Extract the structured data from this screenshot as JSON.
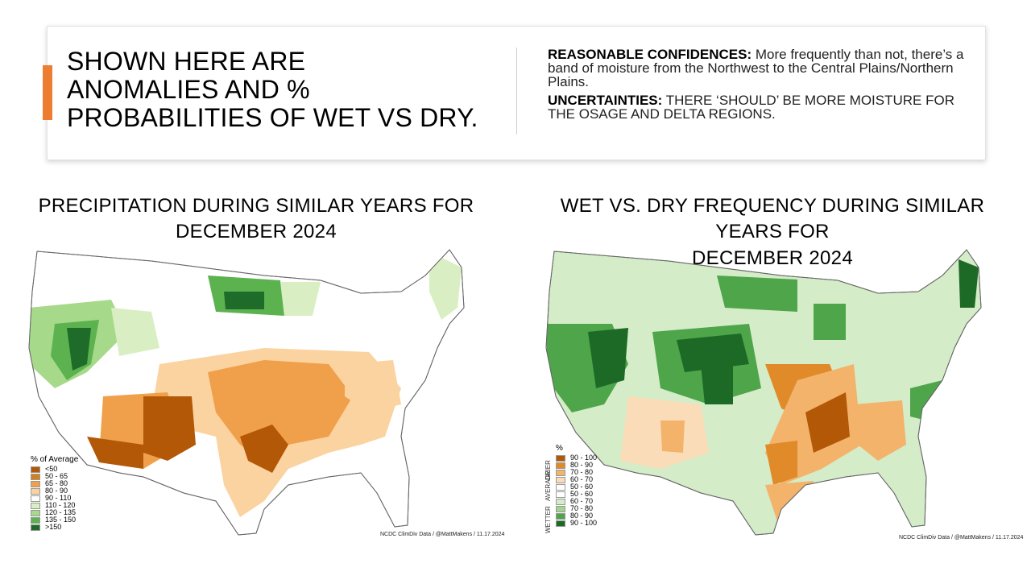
{
  "header": {
    "headline_lines": [
      "SHOWN HERE ARE",
      "ANOMALIES AND %",
      "PROBABILITIES OF WET VS DRY."
    ],
    "confidences_label": "REASONABLE CONFIDENCES:",
    "confidences_text": "More frequently than not, there’s a band of moisture from the Northwest to the Central Plains/Northern Plains.",
    "uncertainties_label": "UNCERTAINTIES:",
    "uncertainties_text": "THERE ‘SHOULD’ BE MORE MOISTURE FOR THE OSAGE AND DELTA REGIONS."
  },
  "left_map": {
    "title_lines": [
      "PRECIPITATION DURING SIMILAR YEARS FOR",
      "DECEMBER 2024"
    ],
    "legend_title": "% of Average",
    "legend": [
      {
        "label": "<50",
        "color": "#b35806"
      },
      {
        "label": "50 - 65",
        "color": "#d6801c"
      },
      {
        "label": "65 - 80",
        "color": "#f0a04a"
      },
      {
        "label": "80 - 90",
        "color": "#fbd3a0"
      },
      {
        "label": "90 - 110",
        "color": "#ffffff"
      },
      {
        "label": "110 - 120",
        "color": "#d9efc3"
      },
      {
        "label": "120 - 135",
        "color": "#a6d98a"
      },
      {
        "label": "135 - 150",
        "color": "#5cb24f"
      },
      {
        "label": ">150",
        "color": "#1f6b2a"
      }
    ],
    "credit": "NCDC ClimDiv Data / @MattMakens / 11.17.2024"
  },
  "right_map": {
    "title_lines": [
      "WET VS. DRY FREQUENCY DURING SIMILAR YEARS FOR",
      "DECEMBER 2024"
    ],
    "legend_title": "%",
    "group_labels": [
      "DRIER",
      "AVERAGE",
      "WETTER"
    ],
    "legend": [
      {
        "label": "90 - 100",
        "color": "#b35806"
      },
      {
        "label": "80 - 90",
        "color": "#e08a2a"
      },
      {
        "label": "70 - 80",
        "color": "#f3b36b"
      },
      {
        "label": "60 - 70",
        "color": "#fbdcb8"
      },
      {
        "label": "50 - 60",
        "color": "#ffffff"
      },
      {
        "label": "50 - 60",
        "color": "#ffffff"
      },
      {
        "label": "60 - 70",
        "color": "#d4ecc8"
      },
      {
        "label": "70 - 80",
        "color": "#a3d38f"
      },
      {
        "label": "80 - 90",
        "color": "#4ea54a"
      },
      {
        "label": "90 - 100",
        "color": "#1d6a27"
      }
    ],
    "credit": "NCDC ClimDiv Data / @MattMakens / 11.17.2024"
  }
}
